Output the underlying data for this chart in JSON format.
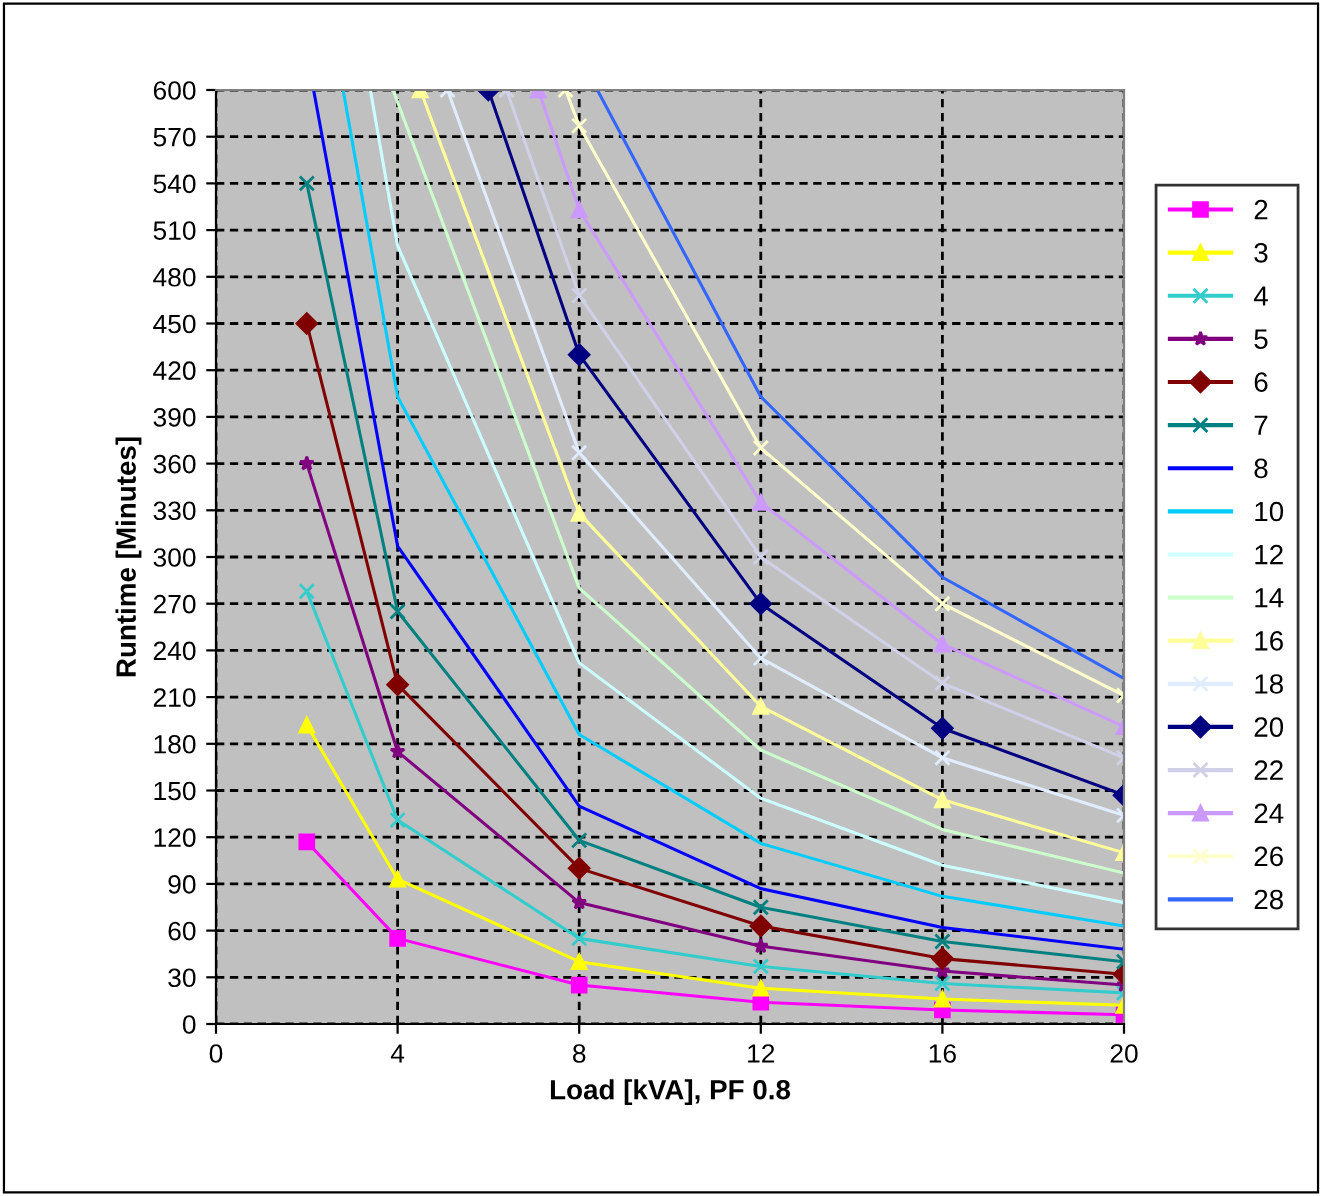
{
  "chart_data": {
    "type": "line",
    "xlabel": "Load [kVA], PF 0.8",
    "ylabel": "Runtime [Minutes]",
    "xlim": [
      0,
      20
    ],
    "xticks": [
      0,
      4,
      8,
      12,
      16,
      20
    ],
    "ylim": [
      0,
      600
    ],
    "yticks": [
      0,
      30,
      60,
      90,
      120,
      150,
      180,
      210,
      240,
      270,
      300,
      330,
      360,
      390,
      420,
      450,
      480,
      510,
      540,
      570,
      600
    ],
    "grid": true,
    "legend": "right",
    "line_style": "solid",
    "series": [
      {
        "name": "2",
        "color": "#ff00ff",
        "marker": "square",
        "x": [
          2,
          4,
          8,
          12,
          16,
          20
        ],
        "values": [
          117,
          55,
          25,
          14,
          9,
          6
        ]
      },
      {
        "name": "3",
        "color": "#ffff00",
        "marker": "triangle",
        "x": [
          2,
          4,
          8,
          12,
          16,
          20
        ],
        "values": [
          192,
          93,
          40,
          23,
          16,
          12
        ]
      },
      {
        "name": "4",
        "color": "#33cccc",
        "marker": "cross",
        "x": [
          2,
          4,
          8,
          12,
          16,
          20
        ],
        "values": [
          278,
          131,
          55,
          37,
          26,
          20
        ]
      },
      {
        "name": "5",
        "color": "#800080",
        "marker": "star",
        "x": [
          2,
          4,
          8,
          12,
          16,
          20
        ],
        "values": [
          360,
          175,
          78,
          50,
          34,
          25
        ]
      },
      {
        "name": "6",
        "color": "#800000",
        "marker": "diamond",
        "x": [
          2,
          4,
          8,
          12,
          16,
          20
        ],
        "values": [
          450,
          218,
          100,
          63,
          42,
          32
        ]
      },
      {
        "name": "7",
        "color": "#008080",
        "marker": "cross",
        "x": [
          2,
          4,
          8,
          12,
          16,
          20
        ],
        "values": [
          540,
          265,
          118,
          75,
          53,
          40
        ]
      },
      {
        "name": "8",
        "color": "#0000ff",
        "marker": "none",
        "x": [
          2.15,
          4,
          8,
          12,
          16,
          20
        ],
        "values": [
          600,
          307,
          140,
          87,
          62,
          48
        ]
      },
      {
        "name": "10",
        "color": "#00ccff",
        "marker": "none",
        "x": [
          2.8,
          4,
          8,
          12,
          16,
          20
        ],
        "values": [
          600,
          403,
          186,
          116,
          82,
          63
        ]
      },
      {
        "name": "12",
        "color": "#ccffff",
        "marker": "none",
        "x": [
          3.4,
          4,
          8,
          12,
          16,
          20
        ],
        "values": [
          600,
          500,
          232,
          145,
          102,
          78
        ]
      },
      {
        "name": "14",
        "color": "#ccffcc",
        "marker": "none",
        "x": [
          3.9,
          8,
          12,
          16,
          20
        ],
        "values": [
          600,
          280,
          176,
          125,
          97
        ]
      },
      {
        "name": "16",
        "color": "#ffff99",
        "marker": "triangle",
        "x": [
          4.5,
          8,
          12,
          16,
          20
        ],
        "values": [
          600,
          328,
          204,
          144,
          110
        ]
      },
      {
        "name": "18",
        "color": "#e0ecff",
        "marker": "cross",
        "x": [
          5.1,
          8,
          12,
          16,
          20
        ],
        "values": [
          600,
          367,
          235,
          171,
          134
        ]
      },
      {
        "name": "20",
        "color": "#000080",
        "marker": "diamond",
        "x": [
          6.0,
          8,
          12,
          16,
          20
        ],
        "values": [
          600,
          430,
          270,
          190,
          147
        ]
      },
      {
        "name": "22",
        "color": "#d0d0e8",
        "marker": "cross",
        "x": [
          6.4,
          8,
          12,
          16,
          20
        ],
        "values": [
          600,
          468,
          300,
          219,
          171
        ]
      },
      {
        "name": "24",
        "color": "#cc99ff",
        "marker": "triangle",
        "x": [
          7.1,
          8,
          12,
          16,
          20
        ],
        "values": [
          600,
          523,
          335,
          244,
          191
        ]
      },
      {
        "name": "26",
        "color": "#ffffcc",
        "marker": "cross",
        "x": [
          7.7,
          8,
          12,
          16,
          20
        ],
        "values": [
          600,
          577,
          370,
          270,
          211
        ]
      },
      {
        "name": "28",
        "color": "#3366ff",
        "marker": "none",
        "x": [
          8.4,
          12,
          16,
          20
        ],
        "values": [
          600,
          403,
          287,
          222
        ]
      }
    ]
  }
}
